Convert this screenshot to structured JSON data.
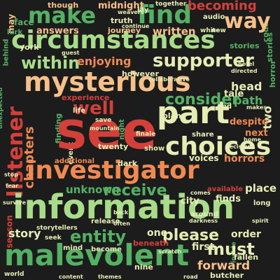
{
  "palette": {
    "background": "#1c1c1c",
    "red": "#d3403a",
    "orange": "#f08a52",
    "peach": "#f6c08a",
    "pale": "#e6edb4",
    "lightgreen": "#a9dc8a",
    "green": "#55b064",
    "darkred": "#a11c2c"
  },
  "words": {
    "see": "see",
    "information": "information",
    "circumstances": "circumstances",
    "mysterious": "mysterious",
    "malevolent": "malevolent",
    "investigator": "investigator",
    "part": "part",
    "choices": "choices",
    "listener": "listener",
    "make": "make",
    "find": "find",
    "supporter": "supporter",
    "way": "way",
    "well": "well",
    "within": "within",
    "consider": "consider",
    "chapters": "chapters",
    "entity": "entity",
    "receive": "receive",
    "must": "must",
    "please": "please",
    "becoming": "becoming",
    "forward": "forward",
    "place": "place",
    "enjoying": "enjoying",
    "midnight": "midnight",
    "path": "path",
    "two": "two",
    "head": "head",
    "unknown": "unknown",
    "story": "story",
    "answers": "answers",
    "written": "written",
    "finds": "finds",
    "order": "order",
    "first": "first",
    "one": "one",
    "city": "city",
    "tale": "tale",
    "however": "however",
    "next": "next",
    "despite": "despite",
    "horrors": "horrors",
    "voices": "voices",
    "journey": "journey",
    "truth": "truth",
    "audio": "audio",
    "stories": "stories",
    "though": "though",
    "lay": "lay",
    "together": "together",
    "save": "save",
    "twenty": "twenty",
    "show": "show",
    "dark": "dark",
    "event": "event",
    "additional": "additional",
    "may": "may",
    "face": "face",
    "lurk": "lurk",
    "york": "york",
    "behind": "behind",
    "unexpected": "unexpected",
    "experience": "experience",
    "plans": "plans",
    "life": "life",
    "butcher": "butcher",
    "fallen": "fallen",
    "season": "season",
    "mind": "mind",
    "become": "become",
    "nine": "nine",
    "world": "world",
    "storytellers": "storytellers",
    "seek": "seek",
    "beneath": "beneath",
    "share": "share",
    "available": "available",
    "long": "long",
    "around": "around",
    "end": "end",
    "release": "release",
    "finding": "finding",
    "horror": "horror",
    "directed": "directed",
    "white": "white",
    "new": "new",
    "coda": "coda",
    "continue": "continue",
    "weavers": "weavers",
    "collaborative": "collaborative",
    "mountain": "mountain",
    "finale": "finale",
    "night": "night",
    "makes": "makes",
    "hotel": "hotel",
    "darkness": "darkness",
    "back": "back",
    "often": "often",
    "scratch": "scratch",
    "inside": "inside",
    "comes": "comes",
    "content": "content",
    "themes": "themes",
    "stop": "stop",
    "survive": "survive",
    "fear": "fear",
    "spirit": "spirit",
    "decision": "decision",
    "home": "home",
    "road": "road",
    "guest": "guest"
  }
}
